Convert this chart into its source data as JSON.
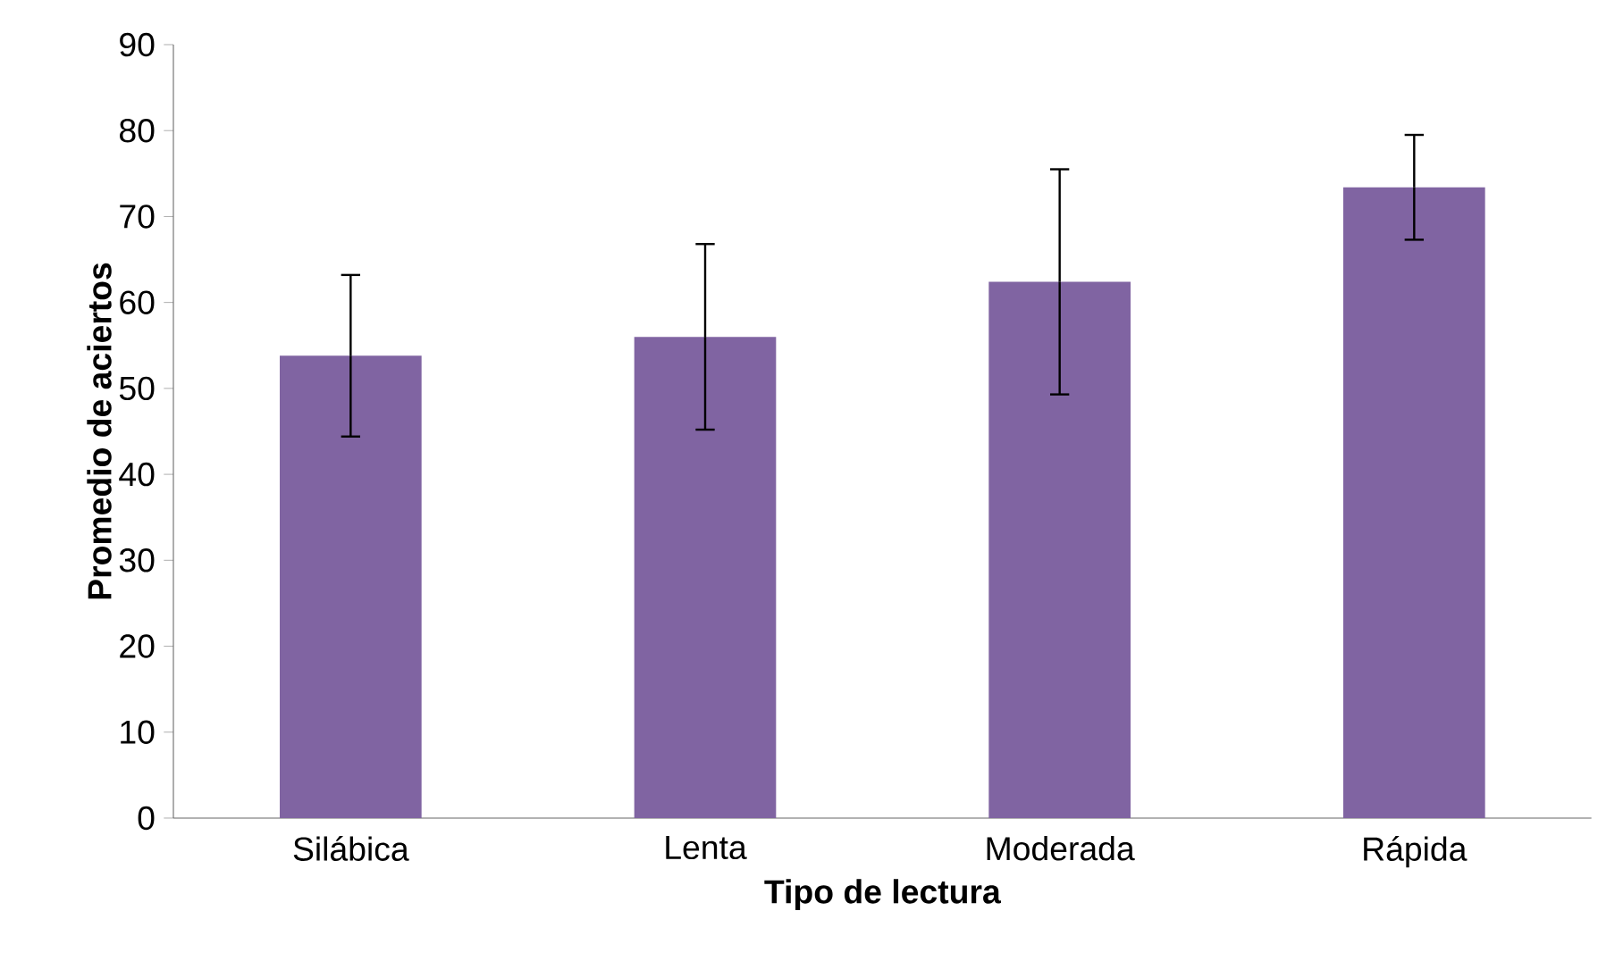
{
  "chart_data": {
    "type": "bar",
    "xlabel": "Tipo de lectura",
    "ylabel": "Promedio de aciertos",
    "categories": [
      "Silábica",
      "Lenta",
      "Moderada",
      "Rápida"
    ],
    "values": [
      53.8,
      56.0,
      62.4,
      73.4
    ],
    "errors": [
      9.4,
      10.8,
      13.1,
      6.1
    ],
    "color": "#8064a2",
    "ylim": [
      0,
      90
    ],
    "yticks": [
      0,
      10,
      20,
      30,
      40,
      50,
      60,
      70,
      80,
      90
    ]
  }
}
